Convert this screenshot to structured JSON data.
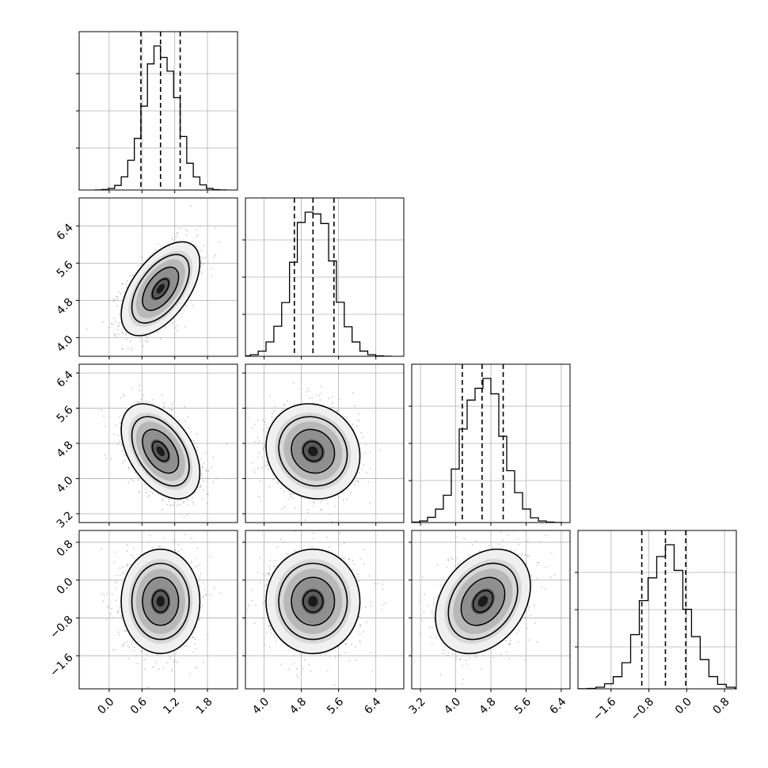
{
  "chart_data": {
    "type": "corner",
    "params": [
      {
        "range": [
          -0.55,
          2.35
        ],
        "ticks": [
          "0.0",
          "0.6",
          "1.2",
          "1.8"
        ],
        "tick_values": [
          0.0,
          0.6,
          1.2,
          1.8
        ],
        "quantiles": [
          0.58,
          0.94,
          1.3
        ],
        "mean": 0.94,
        "sd": 0.3
      },
      {
        "range": [
          3.6,
          7.0
        ],
        "ticks": [
          "4.0",
          "4.8",
          "5.6",
          "6.4"
        ],
        "tick_values": [
          4.0,
          4.8,
          5.6,
          6.4
        ],
        "quantiles": [
          4.65,
          5.05,
          5.5
        ],
        "mean": 5.05,
        "sd": 0.42
      },
      {
        "range": [
          3.0,
          6.6
        ],
        "ticks": [
          "3.2",
          "4.0",
          "4.8",
          "5.6",
          "6.4"
        ],
        "tick_values": [
          3.2,
          4.0,
          4.8,
          5.6,
          6.4
        ],
        "quantiles": [
          4.15,
          4.6,
          5.08
        ],
        "mean": 4.62,
        "sd": 0.45
      },
      {
        "range": [
          -2.3,
          1.05
        ],
        "ticks": [
          "−1.6",
          "−0.8",
          "0.0",
          "0.8"
        ],
        "tick_values": [
          -1.6,
          -0.8,
          0.0,
          0.8
        ],
        "quantiles": [
          -0.95,
          -0.45,
          -0.02
        ],
        "mean": -0.45,
        "sd": 0.46
      }
    ],
    "correlations": [
      {
        "pair": [
          1,
          0
        ],
        "rho": 0.55
      },
      {
        "pair": [
          2,
          0
        ],
        "rho": -0.45
      },
      {
        "pair": [
          2,
          1
        ],
        "rho": -0.1
      },
      {
        "pair": [
          3,
          0
        ],
        "rho": 0.0
      },
      {
        "pair": [
          3,
          1
        ],
        "rho": 0.0
      },
      {
        "pair": [
          3,
          2
        ],
        "rho": 0.3
      }
    ],
    "histogram": {
      "style": "step",
      "bins": 20
    },
    "contours": true,
    "quantile_lines": "dashed",
    "grid": true
  }
}
